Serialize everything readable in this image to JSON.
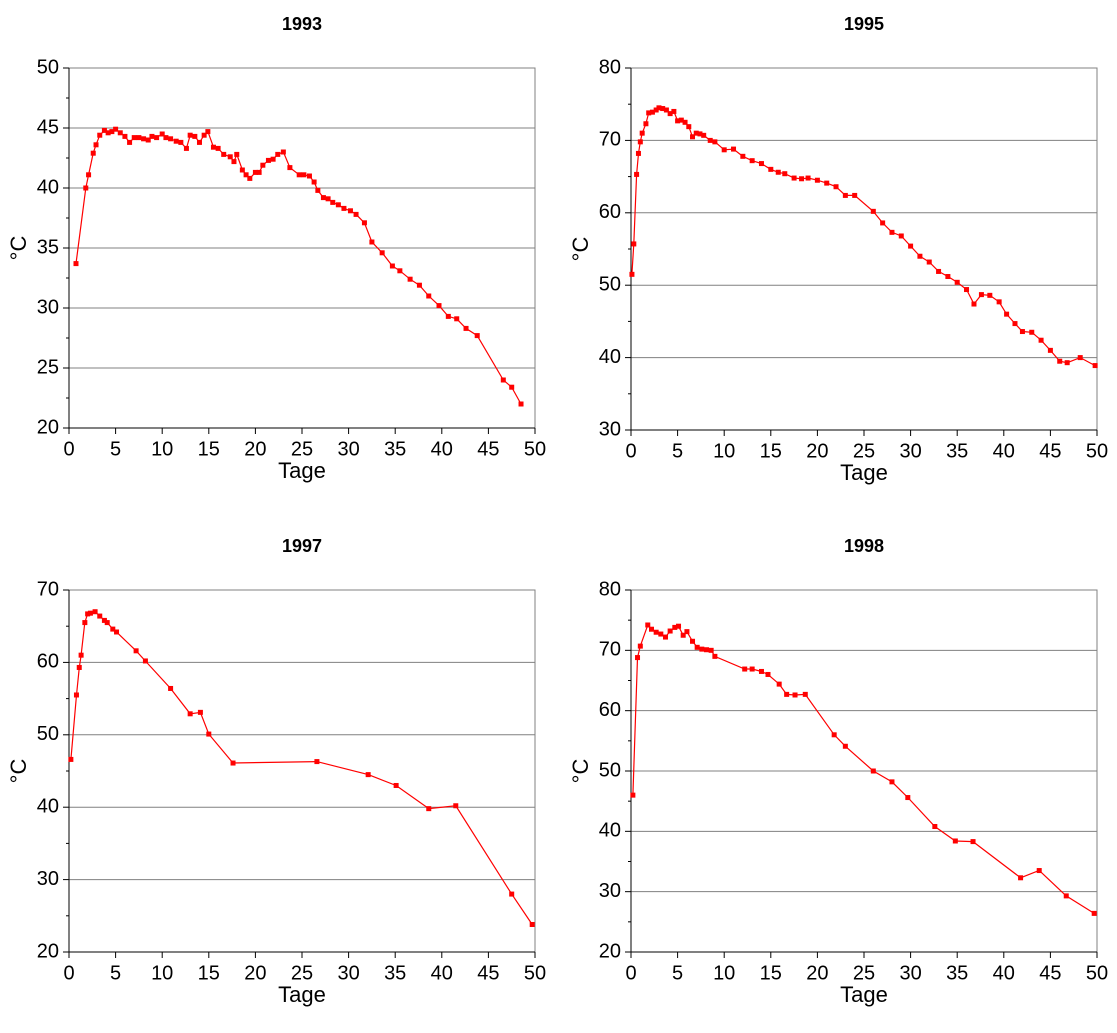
{
  "chart_data": [
    {
      "type": "line",
      "title": "1993",
      "xlabel": "Tage",
      "ylabel": "°C",
      "color": "#ff0000",
      "grid": true,
      "xlim": [
        0,
        50
      ],
      "ylim": [
        20,
        50
      ],
      "xticks": [
        0,
        5,
        10,
        15,
        20,
        25,
        30,
        35,
        40,
        45,
        50
      ],
      "yticks": [
        20,
        25,
        30,
        35,
        40,
        45,
        50
      ],
      "x": [
        0.75,
        1.8,
        2.1,
        2.6,
        2.9,
        3.3,
        3.8,
        4.2,
        4.6,
        5,
        5.5,
        6,
        6.5,
        7,
        7.5,
        8,
        8.5,
        8.9,
        9.4,
        10,
        10.4,
        10.9,
        11.5,
        12,
        12.6,
        13,
        13.5,
        14,
        14.5,
        14.9,
        15.5,
        16,
        16.6,
        17.3,
        17.7,
        18,
        18.6,
        19,
        19.4,
        20,
        20.4,
        20.8,
        21.4,
        21.9,
        22.4,
        23,
        23.7,
        24.7,
        25.2,
        25.8,
        26.3,
        26.7,
        27.3,
        27.8,
        28.3,
        28.9,
        29.5,
        30.2,
        30.8,
        31.7,
        32.5,
        33.6,
        34.7,
        35.5,
        36.6,
        37.6,
        38.6,
        39.7,
        40.7,
        41.6,
        42.6,
        43.8,
        46.6,
        47.5,
        48.5
      ],
      "values": [
        33.7,
        40,
        41.1,
        42.9,
        43.6,
        44.4,
        44.8,
        44.6,
        44.7,
        44.9,
        44.6,
        44.3,
        43.8,
        44.2,
        44.2,
        44.1,
        44,
        44.3,
        44.2,
        44.5,
        44.2,
        44.1,
        43.9,
        43.8,
        43.3,
        44.4,
        44.3,
        43.8,
        44.4,
        44.7,
        43.4,
        43.3,
        42.8,
        42.6,
        42.2,
        42.8,
        41.5,
        41.1,
        40.8,
        41.3,
        41.3,
        41.9,
        42.3,
        42.4,
        42.8,
        43,
        41.7,
        41.1,
        41.1,
        41,
        40.5,
        39.8,
        39.2,
        39.1,
        38.8,
        38.6,
        38.3,
        38.1,
        37.8,
        37.1,
        35.5,
        34.6,
        33.5,
        33.1,
        32.4,
        31.9,
        31,
        30.2,
        29.3,
        29.1,
        28.3,
        27.7,
        24,
        23.4,
        22
      ]
    },
    {
      "type": "line",
      "title": "1995",
      "xlabel": "Tage",
      "ylabel": "°C",
      "color": "#ff0000",
      "grid": true,
      "xlim": [
        0,
        50
      ],
      "ylim": [
        30,
        80
      ],
      "xticks": [
        0,
        5,
        10,
        15,
        20,
        25,
        30,
        35,
        40,
        45,
        50
      ],
      "yticks": [
        30,
        40,
        50,
        60,
        70,
        80
      ],
      "x": [
        0.1,
        0.3,
        0.6,
        0.8,
        1,
        1.2,
        1.6,
        1.9,
        2.3,
        2.7,
        3,
        3.4,
        3.8,
        4.2,
        4.6,
        5,
        5.4,
        5.8,
        6.2,
        6.6,
        7,
        7.4,
        7.8,
        8.5,
        9,
        10,
        11,
        12,
        13,
        14,
        15,
        15.8,
        16.5,
        17.5,
        18.3,
        19,
        20,
        21,
        22,
        23,
        24,
        26,
        27,
        28,
        29,
        30,
        31,
        32,
        33,
        34,
        35,
        36,
        36.8,
        37.6,
        38.5,
        39.5,
        40.3,
        41.2,
        42,
        43,
        44,
        45,
        46,
        46.8,
        48.2,
        49.8
      ],
      "values": [
        51.5,
        55.7,
        65.3,
        68.2,
        69.8,
        71,
        72.3,
        73.8,
        73.9,
        74.2,
        74.5,
        74.4,
        74.2,
        73.7,
        74,
        72.7,
        72.8,
        72.5,
        71.9,
        70.5,
        71,
        70.9,
        70.7,
        70,
        69.8,
        68.7,
        68.8,
        67.8,
        67.2,
        66.8,
        66,
        65.6,
        65.4,
        64.8,
        64.7,
        64.8,
        64.5,
        64.1,
        63.6,
        62.4,
        62.4,
        60.2,
        58.6,
        57.3,
        56.8,
        55.4,
        54,
        53.2,
        51.9,
        51.2,
        50.4,
        49.4,
        47.4,
        48.7,
        48.6,
        47.7,
        46,
        44.7,
        43.6,
        43.5,
        42.4,
        41,
        39.5,
        39.3,
        40,
        38.9
      ]
    },
    {
      "type": "line",
      "title": "1997",
      "xlabel": "Tage",
      "ylabel": "°C",
      "color": "#ff0000",
      "grid": true,
      "xlim": [
        0,
        50
      ],
      "ylim": [
        20,
        70
      ],
      "xticks": [
        0,
        5,
        10,
        15,
        20,
        25,
        30,
        35,
        40,
        45,
        50
      ],
      "yticks": [
        20,
        30,
        40,
        50,
        60,
        70
      ],
      "x": [
        0.2,
        0.8,
        1.1,
        1.3,
        1.7,
        2,
        2.3,
        2.8,
        3.3,
        3.8,
        4.1,
        4.7,
        5.1,
        7.2,
        8.2,
        10.9,
        13,
        14.1,
        15,
        17.6,
        26.6,
        32.1,
        35.1,
        38.6,
        41.5,
        47.5,
        49.7
      ],
      "values": [
        46.6,
        55.5,
        59.3,
        61,
        65.5,
        66.7,
        66.8,
        67,
        66.4,
        65.8,
        65.5,
        64.6,
        64.2,
        61.6,
        60.2,
        56.4,
        52.9,
        53.1,
        50.1,
        46.1,
        46.3,
        44.5,
        43,
        39.8,
        40.2,
        28,
        23.8
      ]
    },
    {
      "type": "line",
      "title": "1998",
      "xlabel": "Tage",
      "ylabel": "°C",
      "color": "#ff0000",
      "grid": true,
      "xlim": [
        0,
        50
      ],
      "ylim": [
        20,
        80
      ],
      "xticks": [
        0,
        5,
        10,
        15,
        20,
        25,
        30,
        35,
        40,
        45,
        50
      ],
      "yticks": [
        20,
        30,
        40,
        50,
        60,
        70,
        80
      ],
      "x": [
        0.2,
        0.7,
        1,
        1.8,
        2.2,
        2.7,
        3.2,
        3.7,
        4.2,
        4.7,
        5.1,
        5.6,
        6,
        6.6,
        7.1,
        7.6,
        8.1,
        8.6,
        9,
        12.2,
        13,
        14,
        14.7,
        15.9,
        16.7,
        17.6,
        18.7,
        21.8,
        23,
        26,
        28,
        29.7,
        32.6,
        34.8,
        36.7,
        41.8,
        43.8,
        46.7,
        49.7
      ],
      "values": [
        46,
        68.8,
        70.7,
        74.2,
        73.5,
        73,
        72.7,
        72.2,
        73.2,
        73.8,
        74,
        72.5,
        73.1,
        71.5,
        70.5,
        70.2,
        70.1,
        70,
        69,
        66.9,
        66.9,
        66.5,
        66,
        64.4,
        62.7,
        62.6,
        62.7,
        56,
        54.1,
        50,
        48.2,
        45.6,
        40.8,
        38.4,
        38.3,
        32.3,
        33.5,
        29.3,
        26.4
      ]
    }
  ]
}
